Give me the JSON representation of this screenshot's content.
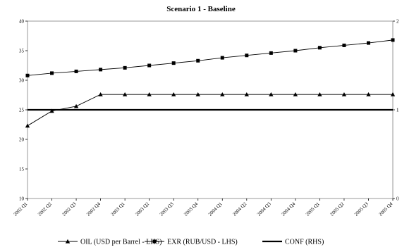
{
  "chart_data": {
    "type": "line",
    "title": "Scenario 1 - Baseline",
    "categories": [
      "2002 Q1",
      "2002 Q2",
      "2002 Q3",
      "2002 Q4",
      "2003 Q1",
      "2003 Q2",
      "2003 Q3",
      "2003 Q4",
      "2004 Q1",
      "2004 Q2",
      "2004 Q3",
      "2004 Q4",
      "2005 Q1",
      "2005 Q2",
      "2005 Q3",
      "2005 Q4"
    ],
    "left_axis": {
      "ylim": [
        10,
        40
      ],
      "ticks": [
        "10",
        "15",
        "20",
        "25",
        "30",
        "35",
        "40"
      ]
    },
    "right_axis": {
      "ylim": [
        0,
        2
      ],
      "ticks": [
        "0",
        "1",
        "2"
      ]
    },
    "series": [
      {
        "name": "OIL (USD per Barrel - LHS)",
        "axis": "left",
        "marker": "triangle",
        "values": [
          22.3,
          24.8,
          25.6,
          27.6,
          27.6,
          27.6,
          27.6,
          27.6,
          27.6,
          27.6,
          27.6,
          27.6,
          27.6,
          27.6,
          27.6,
          27.6
        ]
      },
      {
        "name": "EXR (RUB/USD - LHS)",
        "axis": "left",
        "marker": "square",
        "values": [
          30.8,
          31.2,
          31.5,
          31.8,
          32.1,
          32.5,
          32.9,
          33.3,
          33.8,
          34.2,
          34.6,
          35.0,
          35.5,
          35.9,
          36.3,
          36.8
        ]
      },
      {
        "name": "CONF (RHS)",
        "axis": "right",
        "marker": "none",
        "values": [
          1,
          1,
          1,
          1,
          1,
          1,
          1,
          1,
          1,
          1,
          1,
          1,
          1,
          1,
          1,
          1
        ]
      }
    ],
    "grid": false,
    "legend": "bottom",
    "colors": {
      "line": "#000000",
      "background": "#ffffff"
    }
  }
}
